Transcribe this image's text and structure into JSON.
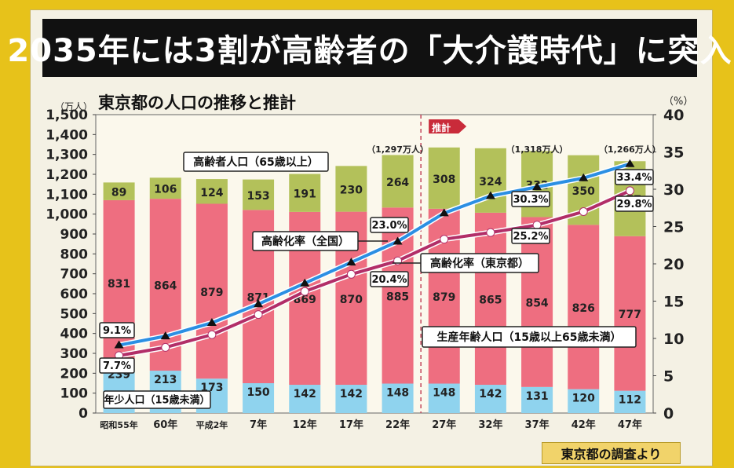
{
  "title": "2035年には3割が高齢者の「大介護時代」に突入",
  "subtitle": "東京都の人口の推移と推計",
  "source": "東京都の調査より",
  "chart_data": {
    "type": "bar",
    "stacked": true,
    "categories": [
      "昭和55年",
      "60年",
      "平成2年",
      "7年",
      "12年",
      "17年",
      "22年",
      "27年",
      "32年",
      "37年",
      "42年",
      "47年"
    ],
    "ylabel_left": "（万人）",
    "ylabel_right": "（%）",
    "ylim_left": [
      0,
      1500
    ],
    "ylim_right": [
      0,
      40
    ],
    "yticks_left": [
      "0",
      "100",
      "200",
      "300",
      "400",
      "500",
      "600",
      "700",
      "800",
      "900",
      "1,000",
      "1,100",
      "1,200",
      "1,300",
      "1,400",
      "1,500"
    ],
    "yticks_right": [
      "0",
      "5",
      "10",
      "15",
      "20",
      "25",
      "30",
      "35",
      "40"
    ],
    "forecast_label": "推計",
    "forecast_start_index": 7,
    "series": [
      {
        "name": "年少人口（15歳未満）",
        "color": "#8fd3ee",
        "values": [
          239,
          213,
          173,
          150,
          142,
          142,
          148,
          148,
          142,
          131,
          120,
          112
        ]
      },
      {
        "name": "生産年齢人口（15歳以上65歳未満）",
        "color": "#ee6e80",
        "values": [
          831,
          864,
          879,
          871,
          869,
          870,
          885,
          879,
          865,
          854,
          826,
          777
        ]
      },
      {
        "name": "高齢者人口（65歳以上）",
        "color": "#b3c15a",
        "values": [
          89,
          106,
          124,
          153,
          191,
          230,
          264,
          308,
          324,
          332,
          350,
          377
        ]
      }
    ],
    "lines": [
      {
        "name": "高齢化率（全国）",
        "color": "#2b8fe3",
        "values": [
          9.1,
          10.3,
          12.1,
          14.6,
          17.4,
          20.2,
          23.0,
          26.8,
          29.1,
          30.3,
          31.5,
          33.4
        ]
      },
      {
        "name": "高齢化率（東京都）",
        "color": "#b22e68",
        "values": [
          7.7,
          8.8,
          10.5,
          13.2,
          16.3,
          18.6,
          20.4,
          23.3,
          24.2,
          25.2,
          27.0,
          29.8
        ]
      }
    ],
    "data_labels": {
      "nationwide": {
        "0": "9.1%",
        "6": "23.0%",
        "9": "30.3%",
        "11": "33.4%"
      },
      "tokyo": {
        "0": "7.7%",
        "6": "20.4%",
        "9": "25.2%",
        "11": "29.8%"
      }
    },
    "totals": {
      "6": "（1,297万人）",
      "9": "（1,318万人）",
      "11": "（1,266万人）"
    },
    "series_labels": {
      "elderly": "高齢者人口（65歳以上）",
      "working": "生産年齢人口（15歳以上65歳未満）",
      "young": "年少人口（15歳未満）",
      "rate_nationwide": "高齢化率（全国）",
      "rate_tokyo": "高齢化率（東京都）"
    }
  }
}
